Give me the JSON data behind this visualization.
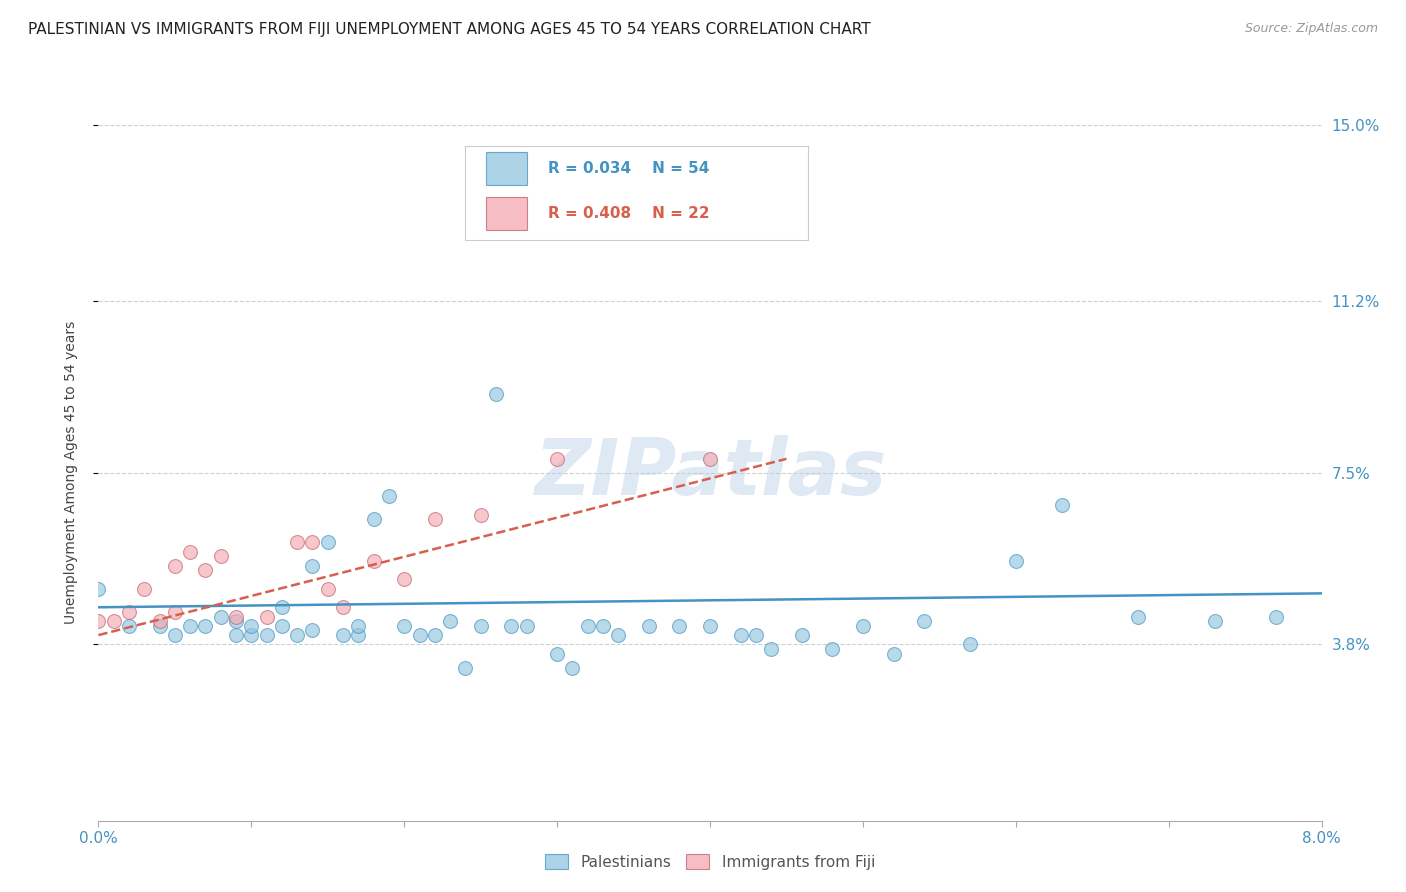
{
  "title": "PALESTINIAN VS IMMIGRANTS FROM FIJI UNEMPLOYMENT AMONG AGES 45 TO 54 YEARS CORRELATION CHART",
  "source": "Source: ZipAtlas.com",
  "ylabel": "Unemployment Among Ages 45 to 54 years",
  "x_min": 0.0,
  "x_max": 0.08,
  "y_min": 0.0,
  "y_max": 0.15,
  "y_tick_labels_right": [
    [
      "3.8%",
      0.038
    ],
    [
      "7.5%",
      0.075
    ],
    [
      "11.2%",
      0.112
    ],
    [
      "15.0%",
      0.15
    ]
  ],
  "watermark": "ZIPatlas",
  "legend_blue_R": "R = 0.034",
  "legend_blue_N": "N = 54",
  "legend_pink_R": "R = 0.408",
  "legend_pink_N": "N = 22",
  "blue_color": "#92c5de",
  "pink_color": "#f4a9b0",
  "blue_line_color": "#4393c3",
  "pink_line_color": "#d6604d",
  "blue_label": "Palestinians",
  "pink_label": "Immigrants from Fiji",
  "blue_scatter_x": [
    0.0,
    0.002,
    0.004,
    0.005,
    0.006,
    0.007,
    0.008,
    0.009,
    0.009,
    0.01,
    0.01,
    0.011,
    0.012,
    0.012,
    0.013,
    0.014,
    0.014,
    0.015,
    0.016,
    0.017,
    0.017,
    0.018,
    0.019,
    0.02,
    0.021,
    0.022,
    0.023,
    0.024,
    0.025,
    0.026,
    0.027,
    0.028,
    0.03,
    0.031,
    0.032,
    0.033,
    0.034,
    0.036,
    0.038,
    0.04,
    0.042,
    0.043,
    0.044,
    0.046,
    0.048,
    0.05,
    0.052,
    0.054,
    0.057,
    0.06,
    0.063,
    0.068,
    0.073,
    0.077
  ],
  "blue_scatter_y": [
    0.05,
    0.042,
    0.042,
    0.04,
    0.042,
    0.042,
    0.044,
    0.04,
    0.043,
    0.04,
    0.042,
    0.04,
    0.042,
    0.046,
    0.04,
    0.041,
    0.055,
    0.06,
    0.04,
    0.04,
    0.042,
    0.065,
    0.07,
    0.042,
    0.04,
    0.04,
    0.043,
    0.033,
    0.042,
    0.092,
    0.042,
    0.042,
    0.036,
    0.033,
    0.042,
    0.042,
    0.04,
    0.042,
    0.042,
    0.042,
    0.04,
    0.04,
    0.037,
    0.04,
    0.037,
    0.042,
    0.036,
    0.043,
    0.038,
    0.056,
    0.068,
    0.044,
    0.043,
    0.044
  ],
  "pink_scatter_x": [
    0.0,
    0.001,
    0.002,
    0.003,
    0.004,
    0.005,
    0.005,
    0.006,
    0.007,
    0.008,
    0.009,
    0.011,
    0.013,
    0.014,
    0.015,
    0.016,
    0.018,
    0.02,
    0.022,
    0.025,
    0.03,
    0.04
  ],
  "pink_scatter_y": [
    0.043,
    0.043,
    0.045,
    0.05,
    0.043,
    0.045,
    0.055,
    0.058,
    0.054,
    0.057,
    0.044,
    0.044,
    0.06,
    0.06,
    0.05,
    0.046,
    0.056,
    0.052,
    0.065,
    0.066,
    0.078,
    0.078
  ],
  "blue_line_x": [
    0.0,
    0.08
  ],
  "blue_line_y": [
    0.046,
    0.049
  ],
  "pink_line_x": [
    0.0,
    0.045
  ],
  "pink_line_y": [
    0.04,
    0.078
  ],
  "grid_color": "#d0d0d0",
  "background_color": "#ffffff",
  "title_fontsize": 11,
  "axis_label_fontsize": 10,
  "tick_fontsize": 11,
  "scatter_size": 100
}
